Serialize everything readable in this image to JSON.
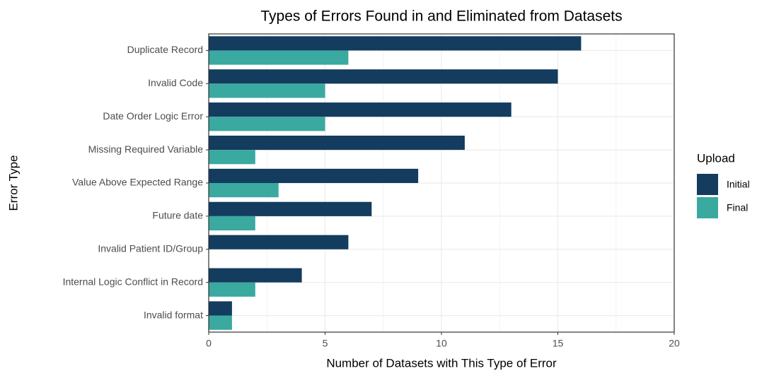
{
  "chart_data": {
    "type": "bar",
    "orientation": "horizontal",
    "title": "Types of Errors Found in and Eliminated from Datasets",
    "x_label": "Number of Datasets with This Type of Error",
    "y_label": "Error Type",
    "legend_title": "Upload",
    "categories": [
      "Duplicate Record",
      "Invalid Code",
      "Date Order Logic Error",
      "Missing Required Variable",
      "Value Above Expected Range",
      "Future date",
      "Invalid Patient ID/Group",
      "Internal Logic Conflict in Record",
      "Invalid format"
    ],
    "series": [
      {
        "name": "Initial",
        "color": "#133c5e",
        "values": [
          16,
          15,
          13,
          11,
          9,
          7,
          6,
          4,
          1
        ]
      },
      {
        "name": "Final",
        "color": "#3aa9a0",
        "values": [
          6,
          5,
          5,
          2,
          3,
          2,
          0,
          2,
          1
        ]
      }
    ],
    "xlim": [
      0,
      20
    ],
    "xticks": [
      0,
      5,
      10,
      15,
      20
    ],
    "grid": true,
    "legend_position": "right"
  }
}
